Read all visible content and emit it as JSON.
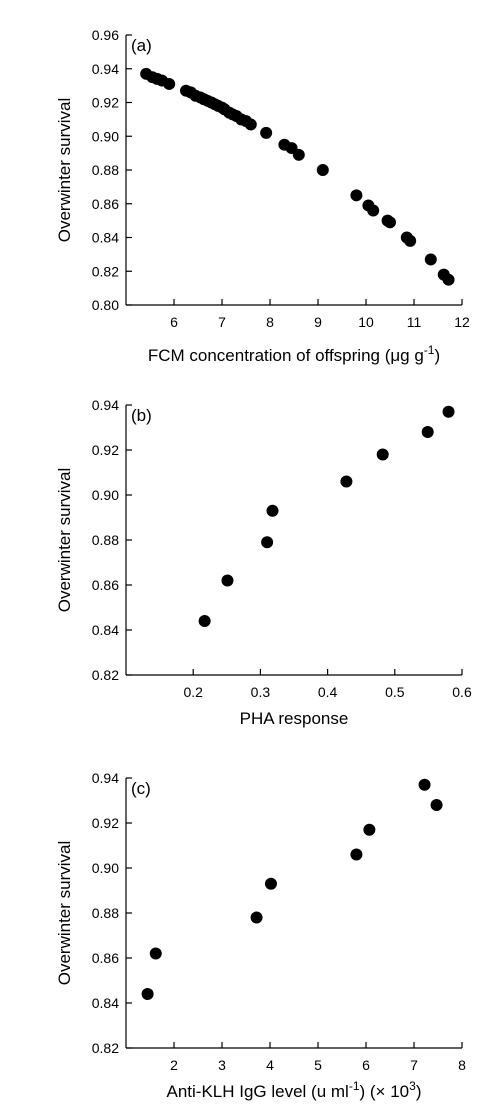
{
  "chart_data": [
    {
      "type": "scatter",
      "panel_label": "(a)",
      "xlabel": "FCM concentration of offspring (μg g",
      "xlabel_sup": "-1",
      "xlabel_end": ")",
      "ylabel": "Overwinter survival",
      "xlim": [
        5,
        12
      ],
      "ylim": [
        0.8,
        0.96
      ],
      "xticks": [
        6,
        7,
        8,
        9,
        10,
        11,
        12
      ],
      "yticks": [
        0.8,
        0.82,
        0.84,
        0.86,
        0.88,
        0.9,
        0.92,
        0.94,
        0.96
      ],
      "xtick_labels": [
        "6",
        "7",
        "8",
        "9",
        "10",
        "11",
        "12"
      ],
      "ytick_labels": [
        "0.80",
        "0.82",
        "0.84",
        "0.86",
        "0.88",
        "0.90",
        "0.92",
        "0.94",
        "0.96"
      ],
      "points": [
        [
          5.42,
          0.937
        ],
        [
          5.55,
          0.935
        ],
        [
          5.65,
          0.934
        ],
        [
          5.75,
          0.933
        ],
        [
          5.9,
          0.931
        ],
        [
          6.25,
          0.927
        ],
        [
          6.35,
          0.926
        ],
        [
          6.45,
          0.924
        ],
        [
          6.55,
          0.923
        ],
        [
          6.62,
          0.922
        ],
        [
          6.7,
          0.921
        ],
        [
          6.78,
          0.92
        ],
        [
          6.85,
          0.919
        ],
        [
          6.92,
          0.918
        ],
        [
          7.0,
          0.917
        ],
        [
          7.05,
          0.916
        ],
        [
          7.15,
          0.914
        ],
        [
          7.22,
          0.913
        ],
        [
          7.3,
          0.912
        ],
        [
          7.4,
          0.91
        ],
        [
          7.5,
          0.909
        ],
        [
          7.6,
          0.907
        ],
        [
          7.92,
          0.902
        ],
        [
          8.3,
          0.895
        ],
        [
          8.45,
          0.893
        ],
        [
          8.6,
          0.889
        ],
        [
          9.1,
          0.88
        ],
        [
          9.8,
          0.865
        ],
        [
          10.05,
          0.859
        ],
        [
          10.15,
          0.856
        ],
        [
          10.45,
          0.85
        ],
        [
          10.5,
          0.849
        ],
        [
          10.85,
          0.84
        ],
        [
          10.92,
          0.838
        ],
        [
          11.35,
          0.827
        ],
        [
          11.62,
          0.818
        ],
        [
          11.72,
          0.815
        ]
      ]
    },
    {
      "type": "scatter",
      "panel_label": "(b)",
      "xlabel": "PHA response",
      "ylabel": "Overwinter survival",
      "xlim": [
        0.1,
        0.6
      ],
      "ylim": [
        0.82,
        0.94
      ],
      "xticks": [
        0.2,
        0.3,
        0.4,
        0.5,
        0.6
      ],
      "yticks": [
        0.82,
        0.84,
        0.86,
        0.88,
        0.9,
        0.92,
        0.94
      ],
      "xtick_labels": [
        "0.2",
        "0.3",
        "0.4",
        "0.5",
        "0.6"
      ],
      "ytick_labels": [
        "0.82",
        "0.84",
        "0.86",
        "0.88",
        "0.90",
        "0.92",
        "0.94"
      ],
      "points": [
        [
          0.217,
          0.844
        ],
        [
          0.251,
          0.862
        ],
        [
          0.31,
          0.879
        ],
        [
          0.318,
          0.893
        ],
        [
          0.428,
          0.906
        ],
        [
          0.482,
          0.918
        ],
        [
          0.549,
          0.928
        ],
        [
          0.58,
          0.937
        ]
      ]
    },
    {
      "type": "scatter",
      "panel_label": "(c)",
      "xlabel": "Anti-KLH IgG level (u ml",
      "xlabel_sup": "-1",
      "xlabel_end": ") (× 10",
      "xlabel_sup2": "3",
      "xlabel_end2": ")",
      "ylabel": "Overwinter survival",
      "xlim": [
        1,
        8
      ],
      "ylim": [
        0.82,
        0.94
      ],
      "xticks": [
        2,
        3,
        4,
        5,
        6,
        7,
        8
      ],
      "yticks": [
        0.82,
        0.84,
        0.86,
        0.88,
        0.9,
        0.92,
        0.94
      ],
      "xtick_labels": [
        "2",
        "3",
        "4",
        "5",
        "6",
        "7",
        "8"
      ],
      "ytick_labels": [
        "0.82",
        "0.84",
        "0.86",
        "0.88",
        "0.90",
        "0.92",
        "0.94"
      ],
      "points": [
        [
          1.45,
          0.844
        ],
        [
          1.62,
          0.862
        ],
        [
          3.72,
          0.878
        ],
        [
          4.02,
          0.893
        ],
        [
          5.8,
          0.906
        ],
        [
          6.07,
          0.917
        ],
        [
          7.22,
          0.937
        ],
        [
          7.47,
          0.928
        ]
      ]
    }
  ]
}
